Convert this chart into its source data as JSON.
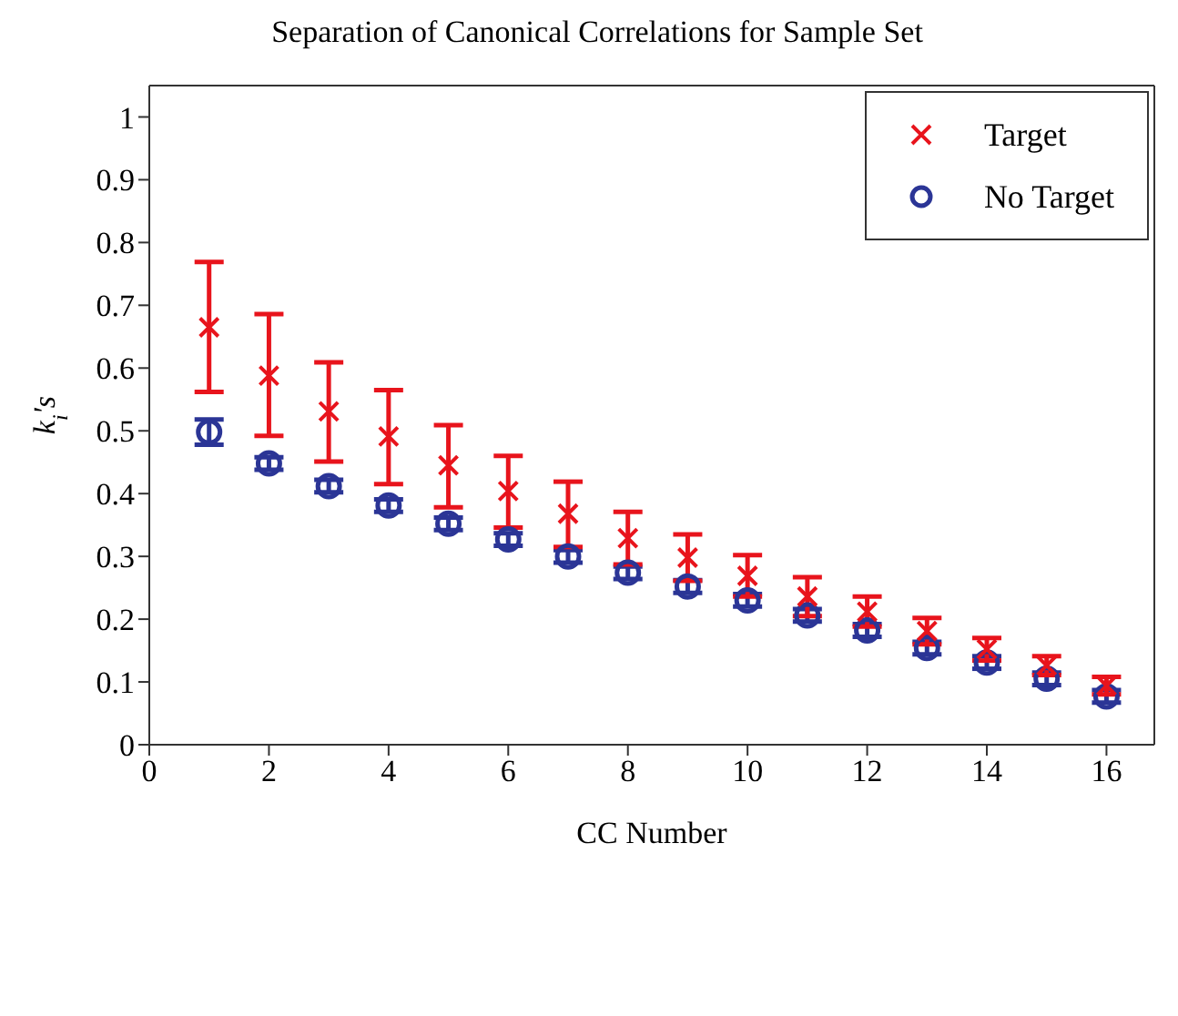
{
  "chart_data": {
    "type": "scatter",
    "title": "Separation of Canonical Correlations for Sample Set",
    "xlabel": "CC Number",
    "ylabel": "k$_{i}$'s",
    "x": [
      1,
      2,
      3,
      4,
      5,
      6,
      7,
      8,
      9,
      10,
      11,
      12,
      13,
      14,
      15,
      16
    ],
    "xlim": [
      0,
      16.8
    ],
    "xticks": [
      0,
      2,
      4,
      6,
      8,
      10,
      12,
      14,
      16
    ],
    "ylim": [
      0,
      1.05
    ],
    "yticks": [
      0,
      0.1,
      0.2,
      0.3,
      0.4,
      0.5,
      0.6,
      0.7,
      0.8,
      0.9,
      1
    ],
    "grid": false,
    "legend": "top right",
    "series": [
      {
        "name": "Target",
        "marker": "cross",
        "color": "#e8141c",
        "values": [
          0.665,
          0.588,
          0.531,
          0.491,
          0.445,
          0.404,
          0.368,
          0.329,
          0.298,
          0.269,
          0.236,
          0.212,
          0.181,
          0.152,
          0.126,
          0.094
        ],
        "errors": [
          [
            0.562,
            0.769
          ],
          [
            0.492,
            0.686
          ],
          [
            0.451,
            0.609
          ],
          [
            0.415,
            0.565
          ],
          [
            0.378,
            0.509
          ],
          [
            0.346,
            0.46
          ],
          [
            0.315,
            0.419
          ],
          0.042,
          0.037,
          0.033,
          0.031,
          0.024,
          0.021,
          0.018,
          0.015,
          0.014
        ]
      },
      {
        "name": "No Target",
        "marker": "circle",
        "color": "#2b3596",
        "values": [
          0.498,
          0.448,
          0.412,
          0.381,
          0.352,
          0.327,
          0.3,
          0.274,
          0.252,
          0.23,
          0.206,
          0.182,
          0.154,
          0.131,
          0.105,
          0.077
        ],
        "errors": [
          0.02,
          0.01,
          0.01,
          0.01,
          0.01,
          0.01,
          0.01,
          0.01,
          0.01,
          0.01,
          0.01,
          0.01,
          0.01,
          0.01,
          0.01,
          0.01
        ]
      }
    ]
  }
}
